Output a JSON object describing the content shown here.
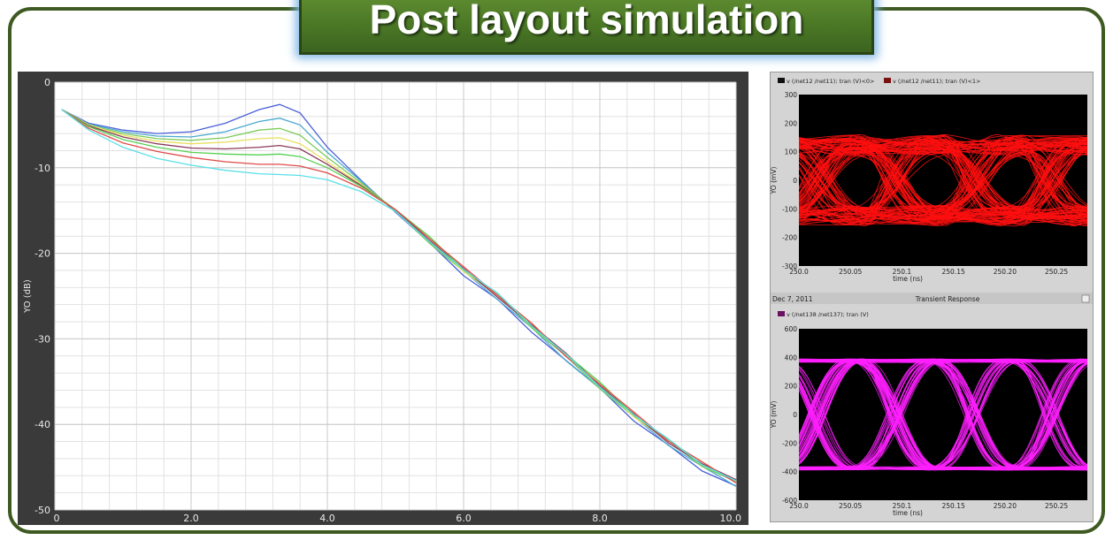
{
  "title": "Post layout simulation",
  "chart_data": [
    {
      "type": "line",
      "ylabel": "YO (dB)",
      "xlim": [
        0,
        10.0
      ],
      "ylim": [
        -50,
        0
      ],
      "x_ticks": [
        "0",
        "2.0",
        "4.0",
        "6.0",
        "8.0",
        "10.0"
      ],
      "y_ticks": [
        "0",
        "-10",
        "-20",
        "-30",
        "-40",
        "-50"
      ],
      "grid": true,
      "x": [
        0.1,
        0.5,
        1.0,
        1.5,
        2.0,
        2.5,
        3.0,
        3.3,
        3.6,
        4.0,
        4.5,
        5.0,
        5.5,
        6.0,
        6.5,
        7.0,
        7.5,
        8.0,
        8.5,
        9.0,
        9.5,
        10.0
      ],
      "series": [
        {
          "color": "#4a5fd8",
          "values": [
            -3.2,
            -4.8,
            -5.6,
            -6.0,
            -5.8,
            -4.8,
            -3.2,
            -2.6,
            -3.6,
            -7.6,
            -11.5,
            -15.2,
            -19.0,
            -22.5,
            -25.5,
            -29.0,
            -32.5,
            -36.0,
            -39.5,
            -42.5,
            -45.2,
            -47.2
          ]
        },
        {
          "color": "#4aa8d0",
          "values": [
            -3.2,
            -4.9,
            -5.8,
            -6.3,
            -6.4,
            -5.8,
            -4.6,
            -4.2,
            -5.0,
            -8.2,
            -11.6,
            -15.1,
            -18.8,
            -22.3,
            -25.3,
            -28.8,
            -32.3,
            -35.8,
            -39.3,
            -42.3,
            -45.0,
            -47.0
          ]
        },
        {
          "color": "#7ccc5a",
          "values": [
            -3.2,
            -5.0,
            -6.0,
            -6.6,
            -6.8,
            -6.5,
            -5.6,
            -5.4,
            -6.2,
            -8.8,
            -11.8,
            -15.0,
            -18.6,
            -22.1,
            -25.1,
            -28.6,
            -32.1,
            -35.6,
            -39.1,
            -42.1,
            -44.8,
            -46.8
          ]
        },
        {
          "color": "#e8e060",
          "values": [
            -3.2,
            -5.0,
            -6.2,
            -6.9,
            -7.2,
            -7.0,
            -6.6,
            -6.5,
            -7.2,
            -9.3,
            -12.0,
            -14.9,
            -18.4,
            -21.9,
            -24.9,
            -28.4,
            -31.9,
            -35.4,
            -38.9,
            -41.9,
            -44.6,
            -46.7
          ]
        },
        {
          "color": "#8a3a5a",
          "values": [
            -3.2,
            -5.1,
            -6.4,
            -7.2,
            -7.7,
            -7.8,
            -7.6,
            -7.4,
            -7.8,
            -9.6,
            -12.1,
            -14.9,
            -18.4,
            -21.9,
            -24.9,
            -28.4,
            -31.9,
            -35.4,
            -38.9,
            -41.9,
            -44.6,
            -46.7
          ]
        },
        {
          "color": "#54d050",
          "values": [
            -3.2,
            -5.2,
            -6.7,
            -7.6,
            -8.2,
            -8.4,
            -8.5,
            -8.4,
            -8.7,
            -10.0,
            -12.2,
            -14.9,
            -18.3,
            -21.8,
            -24.8,
            -28.3,
            -31.8,
            -35.3,
            -38.8,
            -41.8,
            -44.5,
            -46.6
          ]
        },
        {
          "color": "#e04a4a",
          "values": [
            -3.2,
            -5.4,
            -7.1,
            -8.1,
            -8.8,
            -9.3,
            -9.6,
            -9.6,
            -9.8,
            -10.6,
            -12.4,
            -14.9,
            -18.3,
            -21.8,
            -24.8,
            -28.3,
            -31.8,
            -35.3,
            -38.8,
            -41.8,
            -44.5,
            -46.6
          ]
        },
        {
          "color": "#5ae0e8",
          "values": [
            -3.2,
            -5.6,
            -7.6,
            -8.9,
            -9.7,
            -10.3,
            -10.7,
            -10.8,
            -10.9,
            -11.4,
            -12.8,
            -15.1,
            -18.4,
            -21.9,
            -24.9,
            -28.4,
            -31.9,
            -35.4,
            -38.9,
            -41.9,
            -44.6,
            -46.7
          ]
        }
      ]
    },
    {
      "type": "eye-diagram",
      "legend": [
        "v (/net12 /net11); tran (V)<0>",
        "v (/net12 /net11); tran (V)<1>"
      ],
      "ylabel": "YO (mV)",
      "xlabel": "time (ns)",
      "x_ticks": [
        "250.0",
        "250.05",
        "250.1",
        "250.15",
        "250.20",
        "250.25"
      ],
      "y_ticks": [
        "300",
        "200",
        "100",
        "0",
        "-100",
        "-200",
        "-300"
      ],
      "xlim": [
        250.0,
        250.28
      ],
      "ylim": [
        -300,
        300
      ],
      "trace_color": "#ff1010"
    },
    {
      "type": "eye-diagram",
      "date": "Dec 7, 2011",
      "title": "Transient Response",
      "legend": [
        "v (/net138 /net137); tran (V)"
      ],
      "ylabel": "YO (mV)",
      "xlabel": "time (ns)",
      "x_ticks": [
        "250.0",
        "250.05",
        "250.1",
        "250.15",
        "250.20",
        "250.25"
      ],
      "y_ticks": [
        "600",
        "400",
        "200",
        "0",
        "-200",
        "-400",
        "-600"
      ],
      "xlim": [
        250.0,
        250.28
      ],
      "ylim": [
        -600,
        600
      ],
      "trace_color": "#ff20ff"
    }
  ]
}
